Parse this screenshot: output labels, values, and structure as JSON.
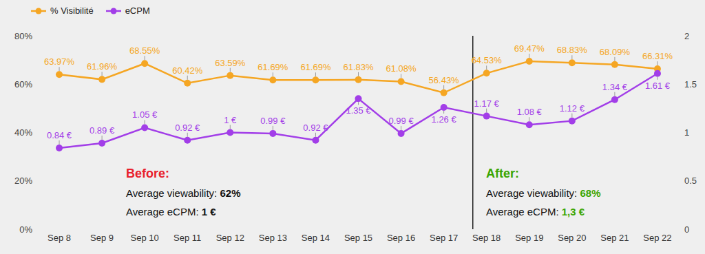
{
  "chart_data": {
    "type": "line",
    "categories": [
      "Sep 8",
      "Sep 9",
      "Sep 10",
      "Sep 11",
      "Sep 12",
      "Sep 13",
      "Sep 14",
      "Sep 15",
      "Sep 16",
      "Sep 17",
      "Sep 18",
      "Sep 19",
      "Sep 20",
      "Sep 21",
      "Sep 22"
    ],
    "series": [
      {
        "name": "% Visibilité",
        "color": "#f5a623",
        "marker": "circle",
        "values": [
          63.97,
          61.96,
          68.55,
          60.42,
          63.59,
          61.69,
          61.69,
          61.83,
          61.08,
          56.43,
          64.53,
          69.47,
          68.83,
          68.09,
          66.31
        ],
        "value_labels": [
          "63.97%",
          "61.96%",
          "68.55%",
          "60.42%",
          "63.59%",
          "61.69%",
          "61.69%",
          "61.83%",
          "61.08%",
          "56.43%",
          "64.53%",
          "69.47%",
          "68.83%",
          "68.09%",
          "66.31%"
        ]
      },
      {
        "name": "eCPM",
        "color": "#a23ee8",
        "marker": "circle",
        "axis": "y2",
        "values": [
          0.84,
          0.89,
          1.05,
          0.92,
          1,
          0.99,
          0.92,
          1.35,
          0.99,
          1.26,
          1.17,
          1.08,
          1.12,
          1.34,
          1.61
        ],
        "value_labels": [
          "0.84 €",
          "0.89 €",
          "1.05 €",
          "0.92 €",
          "1 €",
          "0.99 €",
          "0.92 €",
          "1.35 €",
          "0.99 €",
          "1.26 €",
          "1.17 €",
          "1.08 €",
          "1.12 €",
          "1.34 €",
          "1.61 €"
        ]
      }
    ],
    "ylim": [
      0,
      80
    ],
    "yticks": [
      {
        "value": 0,
        "label": "0%"
      },
      {
        "value": 20,
        "label": "20%"
      },
      {
        "value": 40,
        "label": "40%"
      },
      {
        "value": 60,
        "label": "60%"
      },
      {
        "value": 80,
        "label": "80%"
      }
    ],
    "y2lim": [
      0,
      2
    ],
    "y2ticks": [
      0,
      0.5,
      1,
      1.5,
      2
    ],
    "grid": false,
    "legend": "top-left",
    "data_labels": true,
    "annotations": [
      {
        "title": "Before:",
        "color": "#e8202c",
        "from": "Sep 8",
        "to": "Sep 17",
        "lines": [
          {
            "label": "Average viewability:",
            "value": "62%"
          },
          {
            "label": "Average eCPM:",
            "value": "1 €"
          }
        ]
      },
      {
        "title": "After:",
        "color": "#3aa500",
        "from": "Sep 18",
        "to": "Sep 22",
        "lines": [
          {
            "label": "Average viewability:",
            "value": "68%",
            "color": "#3aa500"
          },
          {
            "label": "Average eCPM:",
            "value": "1,3 €",
            "color": "#3aa500"
          }
        ]
      }
    ]
  }
}
